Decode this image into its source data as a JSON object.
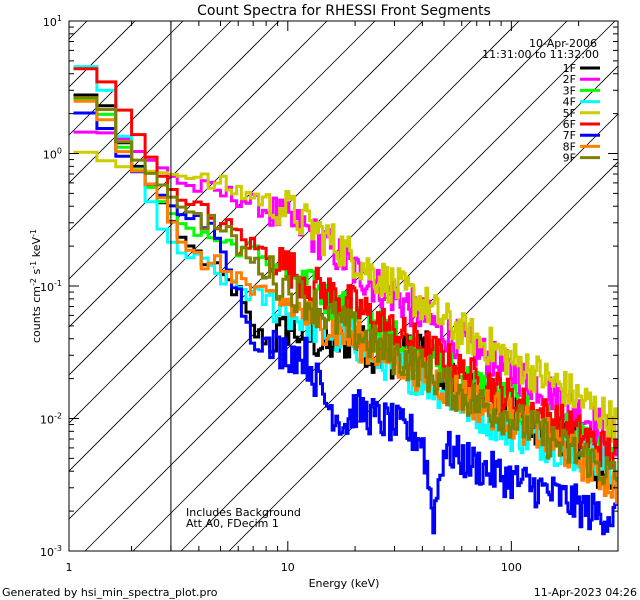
{
  "chart_data": {
    "type": "line",
    "title": "Count Spectra for RHESSI Front Segments",
    "date_label": "10-Apr-2006",
    "time_range_label": "11:31:00 to 11:32:00",
    "xlabel": "Energy (keV)",
    "ylabel": {
      "base": "counts cm",
      "exp1": "-2",
      "mid": " s",
      "exp2": "-1",
      "tail": " keV",
      "exp3": "-1"
    },
    "x_scale": "log",
    "y_scale": "log",
    "xlim": [
      1.05,
      300
    ],
    "ylim": [
      0.001,
      10
    ],
    "x_ticks": [
      {
        "value": 1,
        "label": "1"
      },
      {
        "value": 10,
        "label": "10"
      },
      {
        "value": 100,
        "label": "100"
      }
    ],
    "y_ticks": [
      {
        "value": 0.001,
        "base": "10",
        "exp": "-3"
      },
      {
        "value": 0.01,
        "base": "10",
        "exp": "-2"
      },
      {
        "value": 0.1,
        "base": "10",
        "exp": "-1"
      },
      {
        "value": 1,
        "base": "10",
        "exp": "0"
      },
      {
        "value": 10,
        "base": "10",
        "exp": "1"
      }
    ],
    "shaded_region": {
      "x_max": 3,
      "pattern": "diagonal-hatch"
    },
    "annotations": [
      "Includes Background",
      "Att A0, FDecim 1"
    ],
    "legend_position": "top-right",
    "series": [
      {
        "name": "1F",
        "color": "#000000",
        "points": [
          [
            1.2,
            2.8
          ],
          [
            1.5,
            2.6
          ],
          [
            1.8,
            1.3
          ],
          [
            2.2,
            0.75
          ],
          [
            2.7,
            0.45
          ],
          [
            3.3,
            0.24
          ],
          [
            4,
            0.17
          ],
          [
            5,
            0.12
          ],
          [
            6,
            0.09
          ],
          [
            7,
            0.045
          ],
          [
            8.5,
            0.038
          ],
          [
            10,
            0.048
          ],
          [
            12,
            0.042
          ],
          [
            15,
            0.035
          ],
          [
            20,
            0.04
          ],
          [
            25,
            0.03
          ],
          [
            30,
            0.028
          ],
          [
            40,
            0.035
          ],
          [
            50,
            0.022
          ],
          [
            60,
            0.018
          ],
          [
            80,
            0.015
          ],
          [
            100,
            0.011
          ],
          [
            130,
            0.009
          ],
          [
            170,
            0.007
          ],
          [
            220,
            0.005
          ],
          [
            300,
            0.003
          ]
        ]
      },
      {
        "name": "2F",
        "color": "#ff00ff",
        "points": [
          [
            1.2,
            1.45
          ],
          [
            1.5,
            1.45
          ],
          [
            1.8,
            1.35
          ],
          [
            2.2,
            1.0
          ],
          [
            2.7,
            0.8
          ],
          [
            3.3,
            0.6
          ],
          [
            4,
            0.55
          ],
          [
            5,
            0.5
          ],
          [
            6,
            0.47
          ],
          [
            7,
            0.42
          ],
          [
            8.5,
            0.36
          ],
          [
            10,
            0.3
          ],
          [
            12,
            0.27
          ],
          [
            14,
            0.22
          ],
          [
            17,
            0.17
          ],
          [
            20,
            0.13
          ],
          [
            25,
            0.1
          ],
          [
            30,
            0.085
          ],
          [
            40,
            0.06
          ],
          [
            50,
            0.045
          ],
          [
            60,
            0.038
          ],
          [
            80,
            0.028
          ],
          [
            100,
            0.022
          ],
          [
            130,
            0.018
          ],
          [
            170,
            0.014
          ],
          [
            220,
            0.01
          ],
          [
            300,
            0.007
          ]
        ]
      },
      {
        "name": "3F",
        "color": "#00ff00",
        "points": [
          [
            1.2,
            2.6
          ],
          [
            1.5,
            2.2
          ],
          [
            1.8,
            1.2
          ],
          [
            2.2,
            0.7
          ],
          [
            2.7,
            0.45
          ],
          [
            3.3,
            0.3
          ],
          [
            4,
            0.25
          ],
          [
            5,
            0.22
          ],
          [
            6,
            0.2
          ],
          [
            7,
            0.18
          ],
          [
            8.5,
            0.16
          ],
          [
            10,
            0.13
          ],
          [
            12,
            0.1
          ],
          [
            15,
            0.08
          ],
          [
            20,
            0.06
          ],
          [
            25,
            0.05
          ],
          [
            30,
            0.04
          ],
          [
            40,
            0.03
          ],
          [
            50,
            0.025
          ],
          [
            60,
            0.02
          ],
          [
            80,
            0.016
          ],
          [
            100,
            0.013
          ],
          [
            130,
            0.01
          ],
          [
            170,
            0.008
          ],
          [
            220,
            0.006
          ],
          [
            300,
            0.004
          ]
        ]
      },
      {
        "name": "4F",
        "color": "#00ffff",
        "points": [
          [
            1.2,
            4.8
          ],
          [
            1.5,
            3.5
          ],
          [
            1.8,
            1.5
          ],
          [
            2.2,
            0.7
          ],
          [
            2.7,
            0.28
          ],
          [
            3.3,
            0.18
          ],
          [
            4,
            0.15
          ],
          [
            5,
            0.12
          ],
          [
            6,
            0.1
          ],
          [
            7,
            0.085
          ],
          [
            8.5,
            0.075
          ],
          [
            10,
            0.065
          ],
          [
            12,
            0.055
          ],
          [
            15,
            0.045
          ],
          [
            20,
            0.038
          ],
          [
            25,
            0.03
          ],
          [
            30,
            0.025
          ],
          [
            40,
            0.02
          ],
          [
            50,
            0.016
          ],
          [
            60,
            0.013
          ],
          [
            80,
            0.01
          ],
          [
            100,
            0.008
          ],
          [
            130,
            0.007
          ],
          [
            170,
            0.006
          ],
          [
            220,
            0.005
          ],
          [
            300,
            0.004
          ]
        ]
      },
      {
        "name": "5F",
        "color": "#cccc00",
        "points": [
          [
            1.2,
            1.05
          ],
          [
            1.5,
            0.9
          ],
          [
            1.8,
            0.8
          ],
          [
            2.2,
            0.75
          ],
          [
            2.7,
            0.72
          ],
          [
            3.3,
            0.68
          ],
          [
            4,
            0.62
          ],
          [
            5,
            0.58
          ],
          [
            6,
            0.52
          ],
          [
            7,
            0.48
          ],
          [
            8.5,
            0.42
          ],
          [
            10,
            0.38
          ],
          [
            12,
            0.3
          ],
          [
            14,
            0.25
          ],
          [
            17,
            0.2
          ],
          [
            20,
            0.16
          ],
          [
            25,
            0.12
          ],
          [
            30,
            0.1
          ],
          [
            40,
            0.075
          ],
          [
            50,
            0.055
          ],
          [
            60,
            0.045
          ],
          [
            80,
            0.035
          ],
          [
            100,
            0.028
          ],
          [
            130,
            0.022
          ],
          [
            170,
            0.017
          ],
          [
            220,
            0.013
          ],
          [
            300,
            0.009
          ]
        ]
      },
      {
        "name": "6F",
        "color": "#ff0000",
        "points": [
          [
            1.2,
            4.5
          ],
          [
            1.5,
            3.8
          ],
          [
            1.8,
            2.3
          ],
          [
            2.2,
            1.3
          ],
          [
            2.7,
            0.7
          ],
          [
            3.3,
            0.45
          ],
          [
            4,
            0.38
          ],
          [
            5,
            0.3
          ],
          [
            6,
            0.25
          ],
          [
            7,
            0.2
          ],
          [
            8.5,
            0.17
          ],
          [
            10,
            0.14
          ],
          [
            12,
            0.11
          ],
          [
            15,
            0.09
          ],
          [
            20,
            0.07
          ],
          [
            25,
            0.055
          ],
          [
            30,
            0.045
          ],
          [
            40,
            0.035
          ],
          [
            50,
            0.028
          ],
          [
            60,
            0.022
          ],
          [
            80,
            0.018
          ],
          [
            100,
            0.014
          ],
          [
            130,
            0.011
          ],
          [
            170,
            0.009
          ],
          [
            220,
            0.007
          ],
          [
            300,
            0.005
          ]
        ]
      },
      {
        "name": "7F",
        "color": "#0000ff",
        "points": [
          [
            1.2,
            2.1
          ],
          [
            1.5,
            1.7
          ],
          [
            1.8,
            1.0
          ],
          [
            2.2,
            0.7
          ],
          [
            2.7,
            0.5
          ],
          [
            3.3,
            0.35
          ],
          [
            4,
            0.3
          ],
          [
            5,
            0.25
          ],
          [
            6,
            0.09
          ],
          [
            7,
            0.04
          ],
          [
            8.5,
            0.035
          ],
          [
            10,
            0.032
          ],
          [
            12,
            0.03
          ],
          [
            15,
            0.013
          ],
          [
            18,
            0.009
          ],
          [
            20,
            0.012
          ],
          [
            25,
            0.01
          ],
          [
            30,
            0.009
          ],
          [
            40,
            0.007
          ],
          [
            45,
            0.0018
          ],
          [
            50,
            0.006
          ],
          [
            60,
            0.005
          ],
          [
            80,
            0.004
          ],
          [
            100,
            0.0035
          ],
          [
            130,
            0.003
          ],
          [
            170,
            0.0025
          ],
          [
            220,
            0.002
          ],
          [
            300,
            0.0018
          ]
        ]
      },
      {
        "name": "8F",
        "color": "#ff8000",
        "points": [
          [
            1.2,
            2.6
          ],
          [
            1.5,
            2.0
          ],
          [
            1.8,
            1.1
          ],
          [
            2.2,
            0.7
          ],
          [
            2.7,
            0.5
          ],
          [
            3.3,
            0.22
          ],
          [
            4,
            0.16
          ],
          [
            5,
            0.14
          ],
          [
            6,
            0.12
          ],
          [
            7,
            0.09
          ],
          [
            8.5,
            0.08
          ],
          [
            10,
            0.075
          ],
          [
            12,
            0.06
          ],
          [
            15,
            0.05
          ],
          [
            20,
            0.04
          ],
          [
            25,
            0.032
          ],
          [
            30,
            0.028
          ],
          [
            40,
            0.022
          ],
          [
            50,
            0.018
          ],
          [
            60,
            0.015
          ],
          [
            80,
            0.012
          ],
          [
            100,
            0.01
          ],
          [
            130,
            0.008
          ],
          [
            170,
            0.006
          ],
          [
            220,
            0.0045
          ],
          [
            300,
            0.003
          ]
        ]
      },
      {
        "name": "9F",
        "color": "#808000",
        "points": [
          [
            1.2,
            2.7
          ],
          [
            1.5,
            2.4
          ],
          [
            1.8,
            1.3
          ],
          [
            2.2,
            0.85
          ],
          [
            2.7,
            0.6
          ],
          [
            3.3,
            0.4
          ],
          [
            4,
            0.33
          ],
          [
            5,
            0.28
          ],
          [
            6,
            0.2
          ],
          [
            7,
            0.15
          ],
          [
            8.5,
            0.12
          ],
          [
            10,
            0.1
          ],
          [
            12,
            0.08
          ],
          [
            15,
            0.06
          ],
          [
            20,
            0.045
          ],
          [
            25,
            0.035
          ],
          [
            30,
            0.03
          ],
          [
            40,
            0.024
          ],
          [
            50,
            0.018
          ],
          [
            60,
            0.015
          ],
          [
            80,
            0.012
          ],
          [
            100,
            0.01
          ],
          [
            130,
            0.008
          ],
          [
            170,
            0.006
          ],
          [
            220,
            0.005
          ],
          [
            300,
            0.0035
          ]
        ]
      }
    ]
  },
  "footer": {
    "generated_by": "Generated by hsi_min_spectra_plot.pro",
    "timestamp": "11-Apr-2023 04:26"
  }
}
